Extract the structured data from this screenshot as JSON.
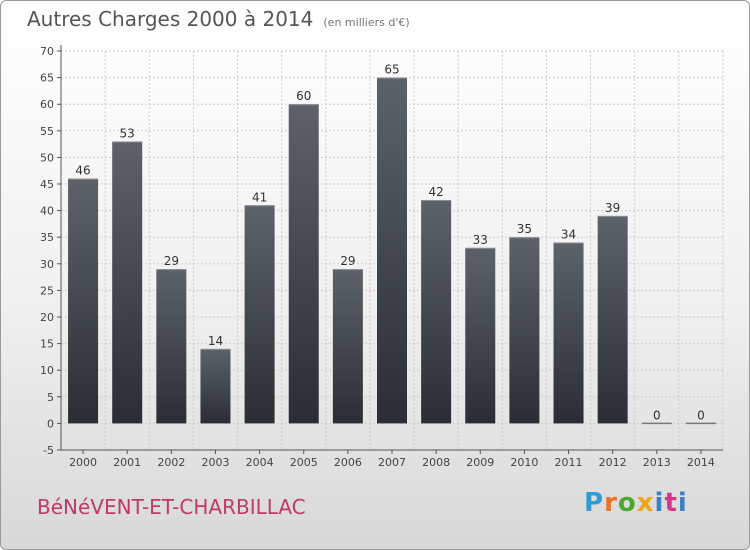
{
  "header": {
    "title": "Autres Charges 2000 à 2014",
    "unit_note": "(en milliers d'€)"
  },
  "footer": {
    "town": "BéNéVENT-ET-CHARBILLAC",
    "logo": "Proxiti"
  },
  "colors": {
    "bar_top": "#5d6269",
    "bar_bottom": "#2a2e34",
    "axis": "#555555",
    "grid": "#cccccc",
    "title": "#555555",
    "town": "#c0396a"
  },
  "chart_data": {
    "type": "bar",
    "title": "Autres Charges 2000 à 2014",
    "subtitle": "(en milliers d'€)",
    "categories": [
      "2000",
      "2001",
      "2002",
      "2003",
      "2004",
      "2005",
      "2006",
      "2007",
      "2008",
      "2009",
      "2010",
      "2011",
      "2012",
      "2013",
      "2014"
    ],
    "values": [
      46,
      53,
      29,
      14,
      41,
      60,
      29,
      65,
      42,
      33,
      35,
      34,
      39,
      0,
      0
    ],
    "data_labels": [
      "46",
      "53",
      "29",
      "14",
      "41",
      "60",
      "29",
      "65",
      "42",
      "33",
      "35",
      "34",
      "39",
      "0",
      "0"
    ],
    "ylim": [
      -5,
      70
    ],
    "yticks": [
      -5,
      0,
      5,
      10,
      15,
      20,
      25,
      30,
      35,
      40,
      45,
      50,
      55,
      60,
      65,
      70
    ],
    "grid": true,
    "legend": "none"
  }
}
